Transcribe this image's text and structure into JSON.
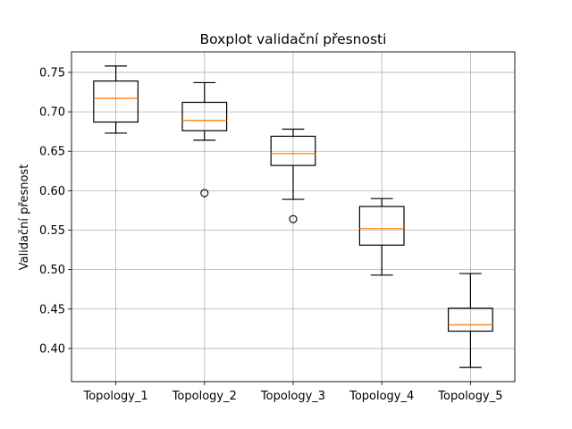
{
  "chart_data": {
    "type": "boxplot",
    "title": "Boxplot validační přesnosti",
    "xlabel": "",
    "ylabel": "Validační přesnost",
    "ylim": [
      0.358,
      0.776
    ],
    "yticks": [
      "0.40",
      "0.45",
      "0.50",
      "0.55",
      "0.60",
      "0.65",
      "0.70",
      "0.75"
    ],
    "grid": true,
    "categories": [
      "Topology_1",
      "Topology_2",
      "Topology_3",
      "Topology_4",
      "Topology_5"
    ],
    "boxes": [
      {
        "whisker_low": 0.673,
        "q1": 0.687,
        "median": 0.717,
        "q3": 0.739,
        "whisker_high": 0.758,
        "outliers": []
      },
      {
        "whisker_low": 0.664,
        "q1": 0.676,
        "median": 0.689,
        "q3": 0.712,
        "whisker_high": 0.737,
        "outliers": [
          0.597
        ]
      },
      {
        "whisker_low": 0.589,
        "q1": 0.632,
        "median": 0.647,
        "q3": 0.669,
        "whisker_high": 0.678,
        "outliers": [
          0.564
        ]
      },
      {
        "whisker_low": 0.493,
        "q1": 0.531,
        "median": 0.552,
        "q3": 0.58,
        "whisker_high": 0.59,
        "outliers": []
      },
      {
        "whisker_low": 0.376,
        "q1": 0.422,
        "median": 0.43,
        "q3": 0.451,
        "whisker_high": 0.495,
        "outliers": []
      }
    ],
    "colors": {
      "box": "#000000",
      "median": "#ff7f0e",
      "grid": "#b0b0b0"
    }
  }
}
